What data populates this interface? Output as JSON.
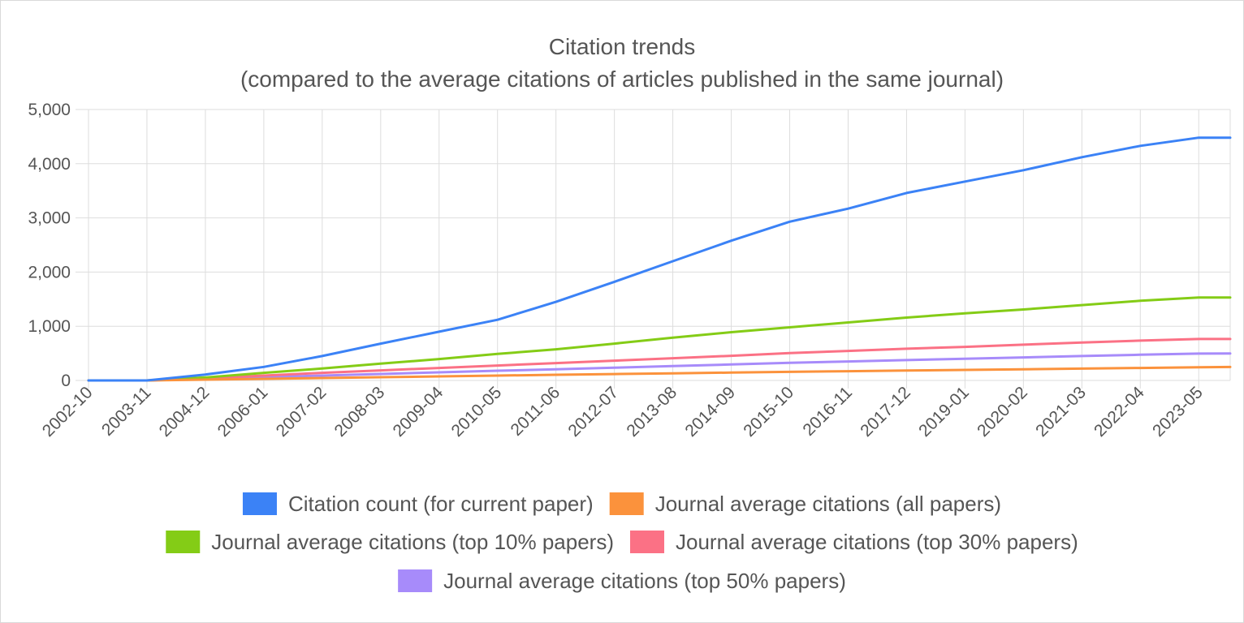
{
  "chart_data": {
    "type": "line",
    "title": "Citation trends",
    "subtitle": "(compared to the average citations of articles published in the same journal)",
    "xlabel": "",
    "ylabel": "",
    "ylim": [
      0,
      5000
    ],
    "grid": true,
    "legend_position": "bottom",
    "y_ticks": [
      "0",
      "1,000",
      "2,000",
      "3,000",
      "4,000",
      "5,000"
    ],
    "y_tick_values": [
      0,
      1000,
      2000,
      3000,
      4000,
      5000
    ],
    "x_tick_labels": [
      "2002-10",
      "2003-11",
      "2004-12",
      "2006-01",
      "2007-02",
      "2008-03",
      "2009-04",
      "2010-05",
      "2011-06",
      "2012-07",
      "2013-08",
      "2014-09",
      "2015-10",
      "2016-11",
      "2017-12",
      "2019-01",
      "2020-02",
      "2021-03",
      "2022-04",
      "2023-05"
    ],
    "x": [
      "2002-10",
      "2003-11",
      "2004-12",
      "2006-01",
      "2007-02",
      "2008-03",
      "2009-04",
      "2010-05",
      "2011-06",
      "2012-07",
      "2013-08",
      "2014-09",
      "2015-10",
      "2016-11",
      "2017-12",
      "2019-01",
      "2020-02",
      "2021-03",
      "2022-04",
      "2023-05",
      "2023-12"
    ],
    "series": [
      {
        "name": "Citation count (for current paper)",
        "color": "#3b82f6",
        "values": [
          0,
          0,
          110,
          250,
          450,
          680,
          900,
          1120,
          1450,
          1820,
          2200,
          2580,
          2930,
          3170,
          3460,
          3670,
          3880,
          4120,
          4330,
          4480,
          4480
        ]
      },
      {
        "name": "Journal average citations (all papers)",
        "color": "#fb923c",
        "values": [
          0,
          0,
          15,
          30,
          45,
          60,
          75,
          90,
          105,
          118,
          132,
          145,
          158,
          170,
          182,
          194,
          206,
          218,
          230,
          242,
          248
        ]
      },
      {
        "name": "Journal average citations (top 10% papers)",
        "color": "#84cc16",
        "values": [
          0,
          0,
          55,
          140,
          220,
          310,
          395,
          490,
          575,
          680,
          790,
          890,
          980,
          1070,
          1160,
          1240,
          1310,
          1390,
          1470,
          1530,
          1530
        ]
      },
      {
        "name": "Journal average citations (top 30% papers)",
        "color": "#fb7185",
        "values": [
          0,
          0,
          40,
          90,
          140,
          185,
          230,
          275,
          320,
          365,
          410,
          455,
          505,
          545,
          585,
          620,
          660,
          700,
          735,
          765,
          765
        ]
      },
      {
        "name": "Journal average citations (top 50% papers)",
        "color": "#a78bfa",
        "values": [
          0,
          0,
          25,
          60,
          90,
          120,
          150,
          180,
          205,
          235,
          265,
          295,
          325,
          350,
          375,
          400,
          425,
          450,
          475,
          495,
          497
        ]
      }
    ]
  }
}
